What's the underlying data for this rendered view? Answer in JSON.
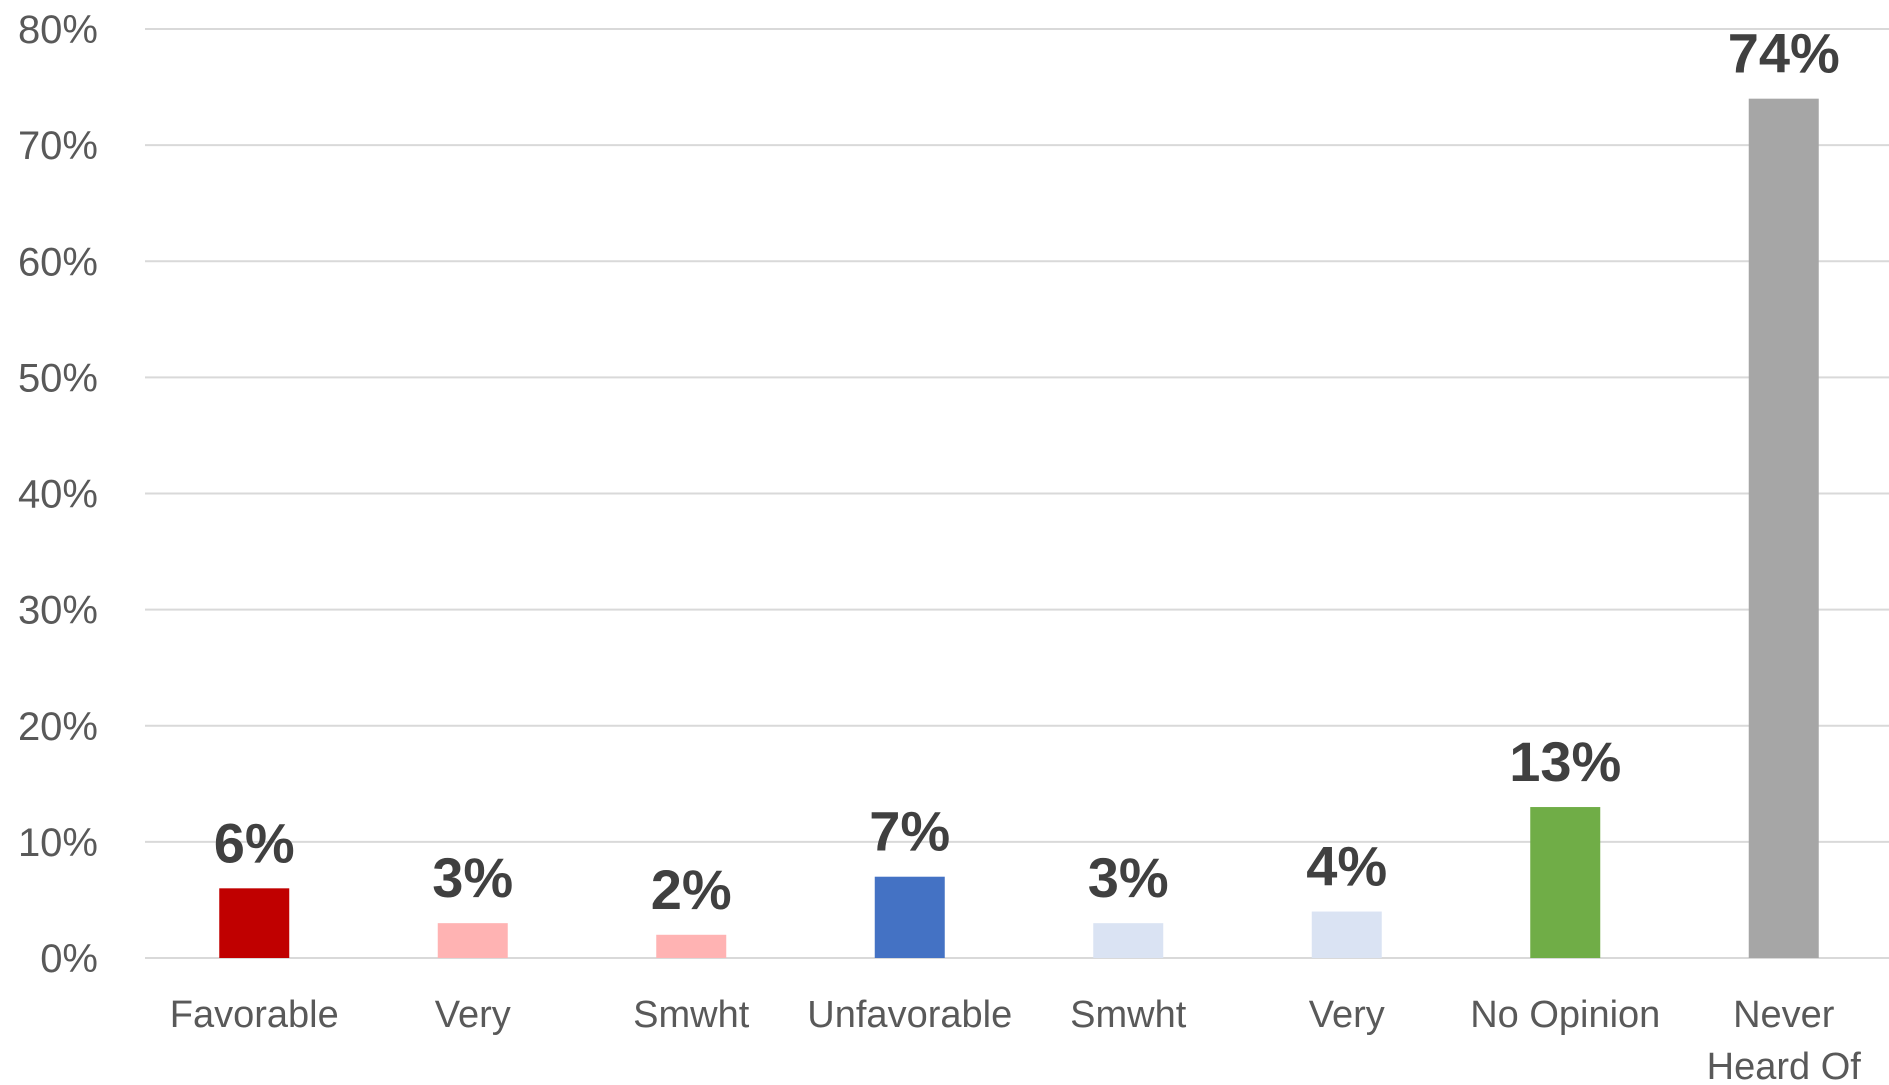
{
  "chart_data": {
    "type": "bar",
    "title": "",
    "xlabel": "",
    "ylabel": "",
    "categories": [
      [
        "Favorable"
      ],
      [
        "Very"
      ],
      [
        "Smwht"
      ],
      [
        "Unfavorable"
      ],
      [
        "Smwht"
      ],
      [
        "Very"
      ],
      [
        "No Opinion"
      ],
      [
        "Never",
        "Heard Of"
      ]
    ],
    "values": [
      6,
      3,
      2,
      7,
      3,
      4,
      13,
      74
    ],
    "data_labels": [
      "6%",
      "3%",
      "2%",
      "7%",
      "3%",
      "4%",
      "13%",
      "74%"
    ],
    "colors": [
      "#c00000",
      "#ffb3b3",
      "#ffb3b3",
      "#4472c4",
      "#dae3f3",
      "#dae3f3",
      "#70ad47",
      "#a6a6a6"
    ],
    "ylim": [
      0,
      80
    ],
    "y_ticks": [
      0,
      10,
      20,
      30,
      40,
      50,
      60,
      70,
      80
    ],
    "y_tick_labels": [
      "0%",
      "10%",
      "20%",
      "30%",
      "40%",
      "50%",
      "60%",
      "70%",
      "80%"
    ],
    "grid": true,
    "legend": "none"
  }
}
